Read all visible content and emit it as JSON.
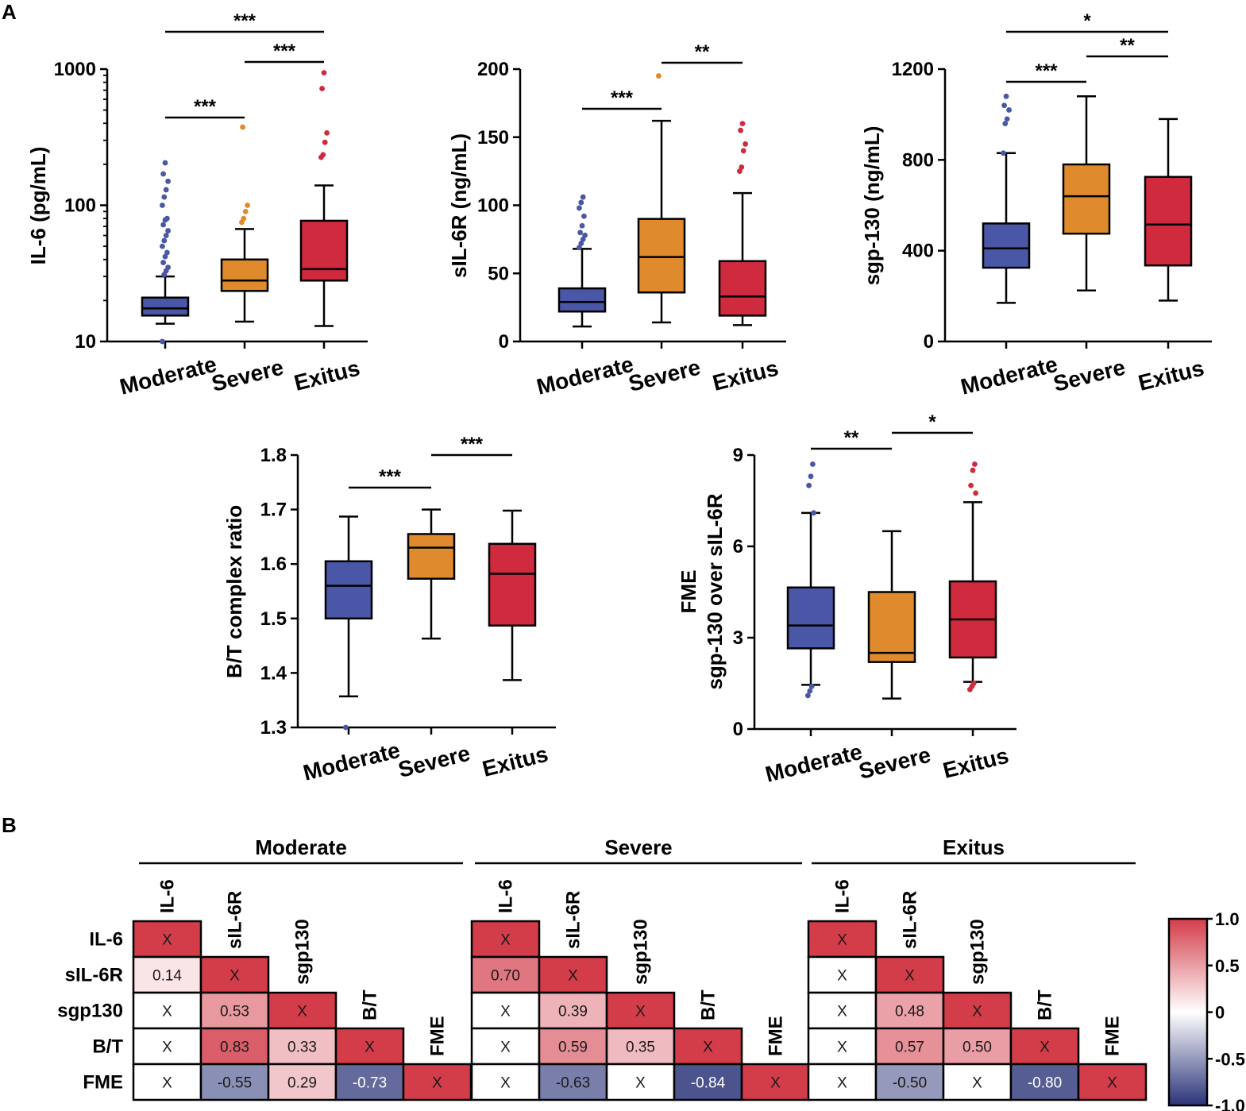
{
  "panel_labels": [
    "A",
    "B"
  ],
  "colors": {
    "Moderate": "#4a56a6",
    "Severe": "#e08a2e",
    "Exitus": "#cf2a3e",
    "diag": "#d33d4a",
    "neg": "#2a3478",
    "white": "#ffffff"
  },
  "chart_data": [
    {
      "type": "box",
      "id": "il6",
      "ylabel": "IL-6 (pg/mL)",
      "yscale": "log",
      "ylim": [
        10,
        1000
      ],
      "yticks": [
        10,
        100,
        1000
      ],
      "yticklabels": [
        "10",
        "100",
        "1000"
      ],
      "categories": [
        "Moderate",
        "Severe",
        "Exitus"
      ],
      "boxes": [
        {
          "group": "Moderate",
          "min": 13.5,
          "q1": 15.5,
          "median": 17.5,
          "q3": 21,
          "max": 30,
          "outliers": [
            10,
            31,
            33,
            35,
            38,
            42,
            45,
            50,
            55,
            60,
            65,
            72,
            78,
            80,
            100,
            115,
            130,
            150,
            170,
            205
          ]
        },
        {
          "group": "Severe",
          "min": 14,
          "q1": 23.5,
          "median": 28,
          "q3": 40,
          "max": 67,
          "outliers": [
            75,
            80,
            90,
            100,
            375
          ]
        },
        {
          "group": "Exitus",
          "min": 13,
          "q1": 28,
          "median": 34,
          "q3": 77,
          "max": 140,
          "outliers": [
            225,
            235,
            290,
            340,
            720,
            940
          ]
        }
      ],
      "significance": [
        {
          "from": "Moderate",
          "to": "Severe",
          "label": "***"
        },
        {
          "from": "Severe",
          "to": "Exitus",
          "label": "***"
        },
        {
          "from": "Moderate",
          "to": "Exitus",
          "label": "***"
        }
      ]
    },
    {
      "type": "box",
      "id": "sil6r",
      "ylabel": "sIL-6R (ng/mL)",
      "yscale": "linear",
      "ylim": [
        0,
        200
      ],
      "yticks": [
        0,
        50,
        100,
        150,
        200
      ],
      "yticklabels": [
        "0",
        "50",
        "100",
        "150",
        "200"
      ],
      "categories": [
        "Moderate",
        "Severe",
        "Exitus"
      ],
      "boxes": [
        {
          "group": "Moderate",
          "min": 11,
          "q1": 22,
          "median": 29,
          "q3": 39,
          "max": 68,
          "outliers": [
            69,
            72,
            75,
            78,
            80,
            85,
            92,
            98,
            102,
            106
          ]
        },
        {
          "group": "Severe",
          "min": 14,
          "q1": 36,
          "median": 62,
          "q3": 90,
          "max": 162,
          "outliers": [
            195
          ]
        },
        {
          "group": "Exitus",
          "min": 12,
          "q1": 19,
          "median": 33,
          "q3": 59,
          "max": 109,
          "outliers": [
            125,
            128,
            140,
            145,
            155,
            160
          ]
        }
      ],
      "significance": [
        {
          "from": "Moderate",
          "to": "Severe",
          "label": "***"
        },
        {
          "from": "Severe",
          "to": "Exitus",
          "label": "**"
        }
      ]
    },
    {
      "type": "box",
      "id": "sgp130",
      "ylabel": "sgp-130 (ng/mL)",
      "yscale": "linear",
      "ylim": [
        0,
        1200
      ],
      "yticks": [
        0,
        400,
        800,
        1200
      ],
      "yticklabels": [
        "0",
        "400",
        "800",
        "1200"
      ],
      "categories": [
        "Moderate",
        "Severe",
        "Exitus"
      ],
      "boxes": [
        {
          "group": "Moderate",
          "min": 170,
          "q1": 325,
          "median": 410,
          "q3": 520,
          "max": 830,
          "outliers": [
            830,
            960,
            980,
            1020,
            1040,
            1080
          ]
        },
        {
          "group": "Severe",
          "min": 225,
          "q1": 475,
          "median": 640,
          "q3": 780,
          "max": 1080,
          "outliers": []
        },
        {
          "group": "Exitus",
          "min": 180,
          "q1": 335,
          "median": 515,
          "q3": 725,
          "max": 980,
          "outliers": []
        }
      ],
      "significance": [
        {
          "from": "Moderate",
          "to": "Severe",
          "label": "***"
        },
        {
          "from": "Severe",
          "to": "Exitus",
          "label": "**"
        },
        {
          "from": "Moderate",
          "to": "Exitus",
          "label": "*"
        }
      ]
    },
    {
      "type": "box",
      "id": "bt_ratio",
      "ylabel": "B/T complex ratio",
      "yscale": "linear",
      "ylim": [
        1.3,
        1.8
      ],
      "yticks": [
        1.3,
        1.4,
        1.5,
        1.6,
        1.7,
        1.8
      ],
      "yticklabels": [
        "1.3",
        "1.4",
        "1.5",
        "1.6",
        "1.7",
        "1.8"
      ],
      "categories": [
        "Moderate",
        "Severe",
        "Exitus"
      ],
      "boxes": [
        {
          "group": "Moderate",
          "min": 1.357,
          "q1": 1.5,
          "median": 1.56,
          "q3": 1.605,
          "max": 1.687,
          "outliers": [
            1.3
          ]
        },
        {
          "group": "Severe",
          "min": 1.463,
          "q1": 1.573,
          "median": 1.63,
          "q3": 1.655,
          "max": 1.7,
          "outliers": []
        },
        {
          "group": "Exitus",
          "min": 1.387,
          "q1": 1.487,
          "median": 1.582,
          "q3": 1.637,
          "max": 1.698,
          "outliers": []
        }
      ],
      "significance": [
        {
          "from": "Moderate",
          "to": "Severe",
          "label": "***"
        },
        {
          "from": "Severe",
          "to": "Exitus",
          "label": "***"
        }
      ]
    },
    {
      "type": "box",
      "id": "fme",
      "ylabel": "FME",
      "ylabel2": "sgp-130 over sIL-6R",
      "yscale": "linear",
      "ylim": [
        0,
        9
      ],
      "yticks": [
        0,
        3,
        6,
        9
      ],
      "yticklabels": [
        "0",
        "3",
        "6",
        "9"
      ],
      "categories": [
        "Moderate",
        "Severe",
        "Exitus"
      ],
      "boxes": [
        {
          "group": "Moderate",
          "min": 1.45,
          "q1": 2.65,
          "median": 3.4,
          "q3": 4.65,
          "max": 7.1,
          "outliers": [
            1.1,
            1.25,
            1.4,
            7.1,
            8.0,
            8.3,
            8.7
          ]
        },
        {
          "group": "Severe",
          "min": 1.0,
          "q1": 2.2,
          "median": 2.5,
          "q3": 4.5,
          "max": 6.5,
          "outliers": []
        },
        {
          "group": "Exitus",
          "min": 1.55,
          "q1": 2.35,
          "median": 3.6,
          "q3": 4.85,
          "max": 7.45,
          "outliers": [
            1.3,
            1.4,
            1.5,
            7.75,
            8.0,
            8.5,
            8.7
          ]
        }
      ],
      "significance": [
        {
          "from": "Moderate",
          "to": "Severe",
          "label": "**"
        },
        {
          "from": "Severe",
          "to": "Exitus",
          "label": "*"
        }
      ]
    },
    {
      "type": "heatmap",
      "id": "correlations",
      "variables": [
        "IL-6",
        "sIL-6R",
        "sgp130",
        "B/T",
        "FME"
      ],
      "colorbar": {
        "min": -1.0,
        "max": 1.0,
        "ticks": [
          1.0,
          0.5,
          0,
          -0.5,
          -1.0
        ],
        "ticklabels": [
          "1.0",
          "0.5",
          "0",
          "-0.5",
          "-1.0"
        ]
      },
      "groups": [
        {
          "title": "Moderate",
          "cells": [
            [
              {
                "v": 1,
                "t": "X"
              }
            ],
            [
              {
                "v": 0.14,
                "t": "0.14"
              },
              {
                "v": 1,
                "t": "X"
              }
            ],
            [
              {
                "v": 0,
                "t": "X"
              },
              {
                "v": 0.53,
                "t": "0.53"
              },
              {
                "v": 1,
                "t": "X"
              }
            ],
            [
              {
                "v": 0,
                "t": "X"
              },
              {
                "v": 0.83,
                "t": "0.83"
              },
              {
                "v": 0.33,
                "t": "0.33"
              },
              {
                "v": 1,
                "t": "X"
              }
            ],
            [
              {
                "v": 0,
                "t": "X"
              },
              {
                "v": -0.55,
                "t": "-0.55"
              },
              {
                "v": 0.29,
                "t": "0.29"
              },
              {
                "v": -0.73,
                "t": "-0.73"
              },
              {
                "v": 1,
                "t": "X"
              }
            ]
          ]
        },
        {
          "title": "Severe",
          "cells": [
            [
              {
                "v": 1,
                "t": "X"
              }
            ],
            [
              {
                "v": 0.7,
                "t": "0.70"
              },
              {
                "v": 1,
                "t": "X"
              }
            ],
            [
              {
                "v": 0,
                "t": "X"
              },
              {
                "v": 0.39,
                "t": "0.39"
              },
              {
                "v": 1,
                "t": "X"
              }
            ],
            [
              {
                "v": 0,
                "t": "X"
              },
              {
                "v": 0.59,
                "t": "0.59"
              },
              {
                "v": 0.35,
                "t": "0.35"
              },
              {
                "v": 1,
                "t": "X"
              }
            ],
            [
              {
                "v": 0,
                "t": "X"
              },
              {
                "v": -0.63,
                "t": "-0.63"
              },
              {
                "v": 0,
                "t": "X"
              },
              {
                "v": -0.84,
                "t": "-0.84"
              },
              {
                "v": 1,
                "t": "X"
              }
            ]
          ]
        },
        {
          "title": "Exitus",
          "cells": [
            [
              {
                "v": 1,
                "t": "X"
              }
            ],
            [
              {
                "v": 0,
                "t": "X"
              },
              {
                "v": 1,
                "t": "X"
              }
            ],
            [
              {
                "v": 0,
                "t": "X"
              },
              {
                "v": 0.48,
                "t": "0.48"
              },
              {
                "v": 1,
                "t": "X"
              }
            ],
            [
              {
                "v": 0,
                "t": "X"
              },
              {
                "v": 0.57,
                "t": "0.57"
              },
              {
                "v": 0.5,
                "t": "0.50"
              },
              {
                "v": 1,
                "t": "X"
              }
            ],
            [
              {
                "v": 0,
                "t": "X"
              },
              {
                "v": -0.5,
                "t": "-0.50"
              },
              {
                "v": 0,
                "t": "X"
              },
              {
                "v": -0.8,
                "t": "-0.80"
              },
              {
                "v": 1,
                "t": "X"
              }
            ]
          ]
        }
      ]
    }
  ]
}
